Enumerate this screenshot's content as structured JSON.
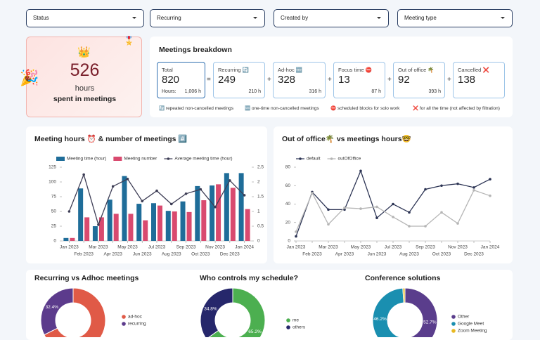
{
  "filters": [
    "Status",
    "Recurring",
    "Created by",
    "Meeting type"
  ],
  "summary": {
    "icon": "👑",
    "party": "🎉",
    "badge": "🎖️",
    "value": "526",
    "unit": "hours",
    "caption": "spent in meetings"
  },
  "breakdown": {
    "title": "Meetings breakdown",
    "boxes": [
      {
        "label": "Total",
        "value": "820",
        "hours_label": "Hours:",
        "hours": "1,006 h"
      },
      {
        "label": "Recurring 🔄",
        "value": "249",
        "hours": "210 h"
      },
      {
        "label": "Ad-hoc 🆕",
        "value": "328",
        "hours": "316 h"
      },
      {
        "label": "Focus time ⛔",
        "value": "13",
        "hours": "87 h"
      },
      {
        "label": "Out of office 🌴",
        "value": "92",
        "hours": "393 h"
      },
      {
        "label": "Cancelled ❌",
        "value": "138"
      }
    ],
    "operators": [
      "=",
      "+",
      "+",
      "+",
      "+"
    ],
    "notes": [
      "🔄 repeated non-cancelled meetings",
      "🆕 one-time non-cancelled meetings",
      "⛔ scheduled blocks for solo work",
      "❌ for all the time (not affected by filtration)"
    ]
  },
  "chart_data": [
    {
      "type": "combo",
      "title": "Meeting hours ⏰ & number of meetings #️⃣",
      "categories": [
        "Jan 2023",
        "Feb 2023",
        "Mar 2023",
        "Apr 2023",
        "May 2023",
        "Jun 2023",
        "Jul 2023",
        "Aug 2023",
        "Sep 2023",
        "Oct 2023",
        "Nov 2023",
        "Dec 2023",
        "Jan 2024"
      ],
      "series": [
        {
          "name": "Meeting time (hour)",
          "type": "bar",
          "color": "#1f6d99",
          "values": [
            5,
            89,
            25,
            70,
            110,
            63,
            64,
            51,
            67,
            93,
            94,
            115,
            115
          ]
        },
        {
          "name": "Meeting number",
          "type": "bar",
          "color": "#d94a6f",
          "values": [
            5,
            40,
            40,
            46,
            46,
            35,
            60,
            50,
            49,
            69,
            96,
            90,
            54
          ]
        },
        {
          "name": "Average meeting time (hour)",
          "type": "line",
          "axis": "y2",
          "color": "#3d3d55",
          "values": [
            1.0,
            2.25,
            0.55,
            1.85,
            2.1,
            1.35,
            1.7,
            1.25,
            1.6,
            1.75,
            1.15,
            2.05,
            1.55
          ]
        }
      ],
      "ylim": [
        0,
        125
      ],
      "yticks": [
        0,
        25,
        50,
        75,
        100,
        125
      ],
      "y2lim": [
        0,
        2.5
      ],
      "y2ticks": [
        0,
        0.5,
        1,
        1.5,
        2,
        2.5
      ],
      "grid": false
    },
    {
      "type": "line",
      "title": "Out of office🌴 vs  meetings hours🤓",
      "categories": [
        "Jan 2023",
        "Feb 2023",
        "Mar 2023",
        "Apr 2023",
        "May 2023",
        "Jun 2023",
        "Jul 2023",
        "Aug 2023",
        "Sep 2023",
        "Oct 2023",
        "Nov 2023",
        "Dec 2023",
        "Jan 2024"
      ],
      "series": [
        {
          "name": "default",
          "color": "#2c3454",
          "values": [
            5,
            53,
            34,
            34,
            76,
            25,
            40,
            31,
            56,
            60,
            62,
            58,
            67
          ]
        },
        {
          "name": "outOfOffice",
          "color": "#b5b5b5",
          "values": [
            10,
            52,
            18,
            36,
            35,
            37,
            26,
            16,
            16,
            31,
            19,
            55,
            49
          ]
        }
      ],
      "ylim": [
        0,
        80
      ],
      "yticks": [
        0,
        20,
        40,
        60,
        80
      ],
      "grid": false
    },
    {
      "type": "donut",
      "title": "Recurring vs Adhoc meetings",
      "categories": [
        "ad-hoc",
        "recurring"
      ],
      "values": [
        67.6,
        32.4
      ],
      "value_labels": [
        null,
        "32.4%"
      ],
      "colors": [
        "#e05a47",
        "#5c3b8c"
      ]
    },
    {
      "type": "donut",
      "title": "Who controls my schedule?",
      "categories": [
        "me",
        "others"
      ],
      "values": [
        65.2,
        34.8
      ],
      "value_labels": [
        "65.2%",
        "34.8%"
      ],
      "colors": [
        "#4caf50",
        "#26276b"
      ]
    },
    {
      "type": "donut",
      "title": "Conference solutions",
      "categories": [
        "Other",
        "Google Meet",
        "Zoom Meeting"
      ],
      "values": [
        52.7,
        46.2,
        1.1
      ],
      "value_labels": [
        "52.7%",
        "46.2%",
        null
      ],
      "colors": [
        "#5a3d8c",
        "#1a8fb0",
        "#e8b923"
      ]
    }
  ]
}
